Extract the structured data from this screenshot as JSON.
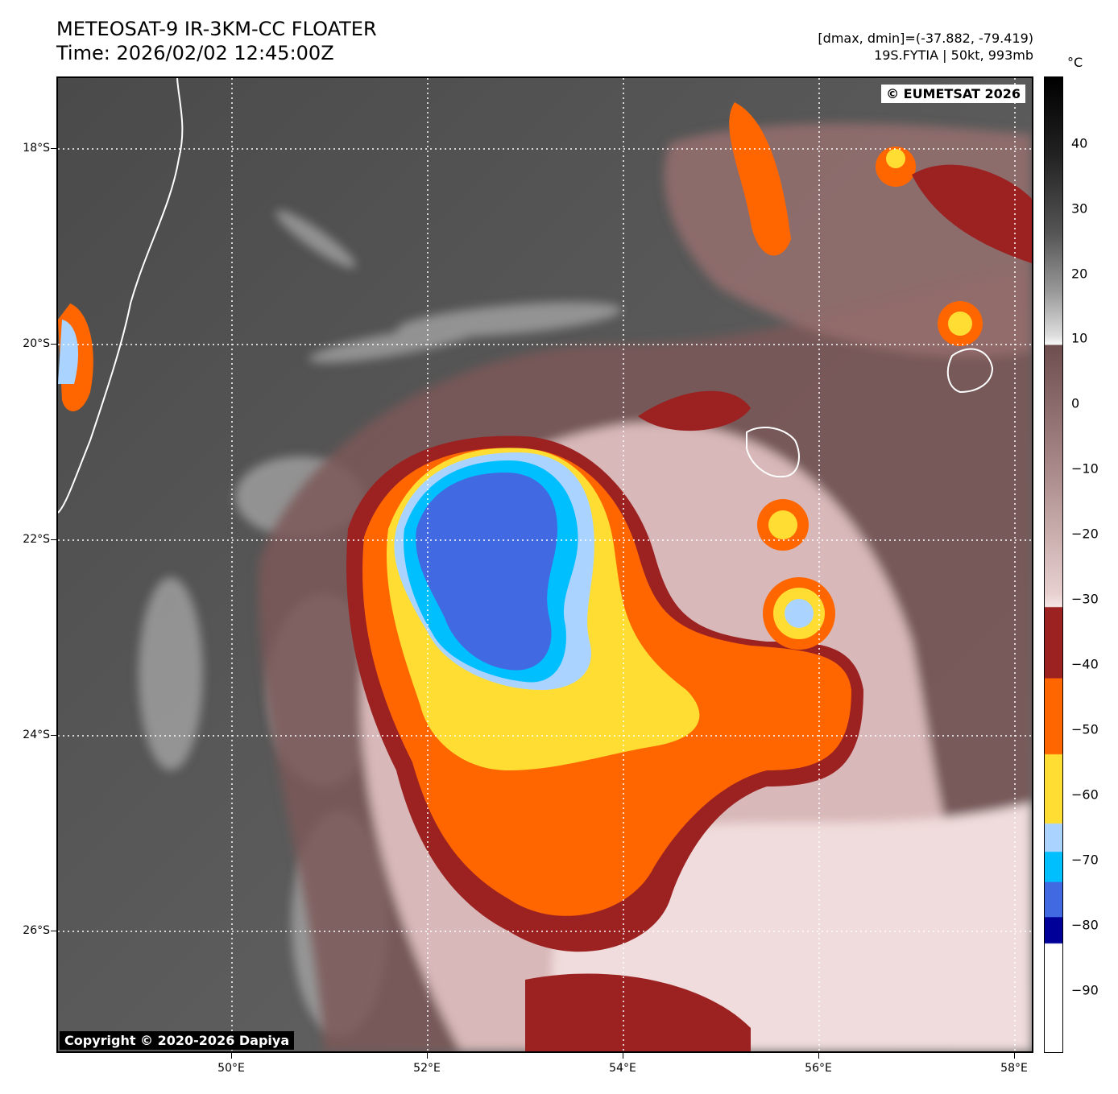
{
  "header": {
    "title_line1": "METEOSAT-9 IR-3KM-CC FLOATER",
    "title_line2": "Time: 2026/02/02 12:45:00Z",
    "info_line1": "[dmax, dmin]=(-37.882, -79.419)",
    "info_line2": "19S.FYTIA | 50kt, 993mb"
  },
  "map": {
    "credit_top": "© EUMETSAT 2026",
    "credit_bottom": "Copyright © 2020-2026 Dapiya",
    "lat_labels": [
      "18°S",
      "20°S",
      "22°S",
      "24°S",
      "26°S"
    ],
    "lon_labels": [
      "50°E",
      "52°E",
      "54°E",
      "56°E",
      "58°E"
    ],
    "lat_range": [
      -27.2,
      -17.3
    ],
    "lon_range": [
      48.2,
      58.1
    ]
  },
  "colorbar": {
    "unit": "°C",
    "tick_labels": [
      "40",
      "30",
      "20",
      "10",
      "0",
      "−10",
      "−20",
      "−30",
      "−40",
      "−50",
      "−60",
      "−70",
      "−80",
      "−90"
    ],
    "range": [
      -100,
      50
    ]
  },
  "colors": {
    "dark_red": "#9c2222",
    "orange": "#ff6600",
    "yellow": "#ffdd33",
    "light_blue": "#aad4ff",
    "cyan": "#00bfff",
    "royal_blue": "#4169e1",
    "navy": "#000099"
  }
}
